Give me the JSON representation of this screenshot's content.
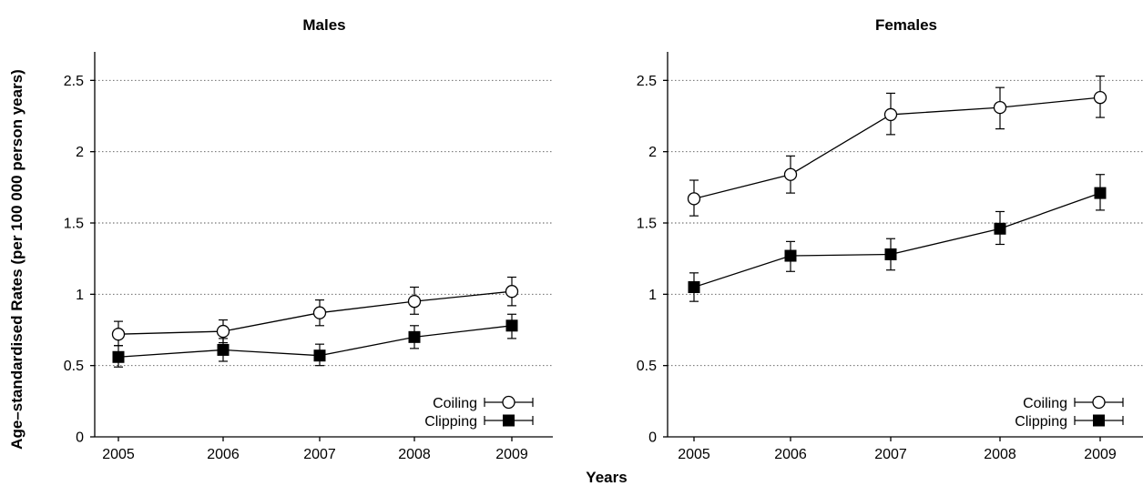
{
  "chart_data": [
    {
      "type": "line",
      "title": "Males",
      "categories": [
        "2005",
        "2006",
        "2007",
        "2008",
        "2009"
      ],
      "ylim": [
        0,
        2.7
      ],
      "yticks": [
        "0",
        "0.5",
        "1",
        "1.5",
        "2",
        "2.5"
      ],
      "grid": true,
      "legend_position": "bottom-right",
      "series": [
        {
          "name": "Coiling",
          "marker": "open-circle",
          "values": [
            0.72,
            0.74,
            0.87,
            0.95,
            1.02
          ],
          "lower": [
            0.64,
            0.66,
            0.78,
            0.86,
            0.92
          ],
          "upper": [
            0.81,
            0.82,
            0.96,
            1.05,
            1.12
          ]
        },
        {
          "name": "Clipping",
          "marker": "filled-square",
          "values": [
            0.56,
            0.61,
            0.57,
            0.7,
            0.78
          ],
          "lower": [
            0.49,
            0.53,
            0.5,
            0.62,
            0.69
          ],
          "upper": [
            0.64,
            0.69,
            0.65,
            0.78,
            0.86
          ]
        }
      ]
    },
    {
      "type": "line",
      "title": "Females",
      "categories": [
        "2005",
        "2006",
        "2007",
        "2008",
        "2009"
      ],
      "ylim": [
        0,
        2.7
      ],
      "yticks": [
        "0",
        "0.5",
        "1",
        "1.5",
        "2",
        "2.5"
      ],
      "grid": true,
      "legend_position": "bottom-right",
      "series": [
        {
          "name": "Coiling",
          "marker": "open-circle",
          "values": [
            1.67,
            1.84,
            2.26,
            2.31,
            2.38
          ],
          "lower": [
            1.55,
            1.71,
            2.12,
            2.16,
            2.24
          ],
          "upper": [
            1.8,
            1.97,
            2.41,
            2.45,
            2.53
          ]
        },
        {
          "name": "Clipping",
          "marker": "filled-square",
          "values": [
            1.05,
            1.27,
            1.28,
            1.46,
            1.71
          ],
          "lower": [
            0.95,
            1.16,
            1.17,
            1.35,
            1.59
          ],
          "upper": [
            1.15,
            1.37,
            1.39,
            1.58,
            1.84
          ]
        }
      ]
    }
  ],
  "shared_axes": {
    "xlabel": "Years",
    "ylabel": "Age–standardised Rates (per 100 000 person years)"
  }
}
